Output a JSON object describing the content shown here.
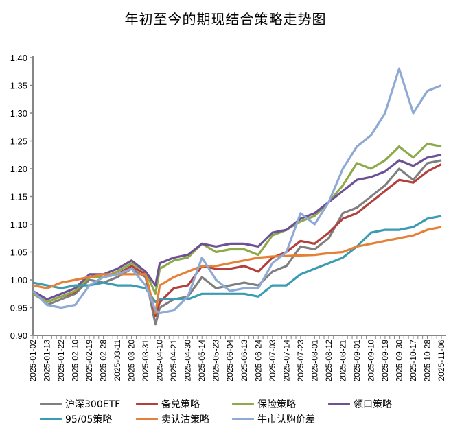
{
  "chart_data": {
    "type": "line",
    "title": "年初至今的期现结合策略走势图",
    "xlabel": "",
    "ylabel": "",
    "ylim": [
      0.9,
      1.4
    ],
    "yticks": [
      "0.90",
      "0.95",
      "1.00",
      "1.05",
      "1.10",
      "1.15",
      "1.20",
      "1.25",
      "1.30",
      "1.35",
      "1.40"
    ],
    "xtick_labels": [
      "2025-01-02",
      "2025-01-13",
      "2025-01-22",
      "2025-02-10",
      "2025-02-19",
      "2025-02-28",
      "2025-03-11",
      "2025-03-20",
      "2025-03-31",
      "2025-04-10",
      "2025-04-21",
      "2025-04-30",
      "2025-05-14",
      "2025-05-23",
      "2025-06-04",
      "2025-06-13",
      "2025-06-24",
      "2025-07-03",
      "2025-07-14",
      "2025-07-23",
      "2025-08-01",
      "2025-08-12",
      "2025-08-21",
      "2025-09-01",
      "2025-09-10",
      "2025-09-19",
      "2025-09-30",
      "2025-10-17",
      "2025-10-28",
      "2025-11-06"
    ],
    "x": [
      "2025-01-02",
      "2025-01-13",
      "2025-01-22",
      "2025-02-10",
      "2025-02-19",
      "2025-02-28",
      "2025-03-11",
      "2025-03-20",
      "2025-03-31",
      "2025-04-07",
      "2025-04-10",
      "2025-04-21",
      "2025-04-30",
      "2025-05-14",
      "2025-05-23",
      "2025-06-04",
      "2025-06-13",
      "2025-06-24",
      "2025-07-03",
      "2025-07-14",
      "2025-07-23",
      "2025-08-01",
      "2025-08-12",
      "2025-08-21",
      "2025-09-01",
      "2025-09-10",
      "2025-09-19",
      "2025-09-30",
      "2025-10-17",
      "2025-10-28",
      "2025-11-06"
    ],
    "grid": false,
    "legend_position": "bottom",
    "series": [
      {
        "name": "沪深300ETF",
        "color": "#7f7f7f",
        "values": [
          0.98,
          0.955,
          0.965,
          0.975,
          1.0,
          0.995,
          1.005,
          1.02,
          1.005,
          0.92,
          0.95,
          0.965,
          0.97,
          1.005,
          0.985,
          0.99,
          0.995,
          0.99,
          1.015,
          1.025,
          1.06,
          1.055,
          1.075,
          1.12,
          1.13,
          1.15,
          1.17,
          1.2,
          1.18,
          1.21,
          1.215
        ]
      },
      {
        "name": "备兑策略",
        "color": "#b2403f",
        "values": [
          0.975,
          0.96,
          0.97,
          0.978,
          1.005,
          1.005,
          1.01,
          1.025,
          1.01,
          0.935,
          0.96,
          0.985,
          0.99,
          1.025,
          1.02,
          1.02,
          1.025,
          1.015,
          1.04,
          1.05,
          1.07,
          1.065,
          1.085,
          1.11,
          1.12,
          1.14,
          1.16,
          1.18,
          1.175,
          1.195,
          1.208
        ]
      },
      {
        "name": "保险策略",
        "color": "#8caa48",
        "values": [
          0.975,
          0.96,
          0.97,
          0.98,
          1.005,
          1.005,
          1.015,
          1.03,
          1.015,
          0.975,
          1.02,
          1.035,
          1.04,
          1.065,
          1.05,
          1.055,
          1.055,
          1.045,
          1.08,
          1.09,
          1.105,
          1.115,
          1.14,
          1.17,
          1.21,
          1.2,
          1.215,
          1.24,
          1.22,
          1.245,
          1.24
        ]
      },
      {
        "name": "领口策略",
        "color": "#6e5094",
        "values": [
          0.98,
          0.965,
          0.975,
          0.985,
          1.01,
          1.01,
          1.02,
          1.035,
          1.015,
          0.99,
          1.03,
          1.04,
          1.045,
          1.065,
          1.06,
          1.065,
          1.065,
          1.06,
          1.085,
          1.09,
          1.11,
          1.12,
          1.14,
          1.16,
          1.18,
          1.185,
          1.195,
          1.215,
          1.205,
          1.22,
          1.225
        ]
      },
      {
        "name": "95/05策略",
        "color": "#3a9bb2",
        "values": [
          0.995,
          0.99,
          0.985,
          0.99,
          0.99,
          0.995,
          0.99,
          0.99,
          0.985,
          0.96,
          0.965,
          0.965,
          0.965,
          0.975,
          0.975,
          0.975,
          0.975,
          0.97,
          0.99,
          0.99,
          1.01,
          1.02,
          1.03,
          1.04,
          1.06,
          1.085,
          1.09,
          1.09,
          1.095,
          1.11,
          1.115
        ]
      },
      {
        "name": "卖认沽策略",
        "color": "#e58137",
        "values": [
          0.99,
          0.985,
          0.995,
          1.0,
          1.005,
          1.01,
          1.01,
          1.01,
          1.01,
          0.94,
          0.99,
          1.005,
          1.015,
          1.025,
          1.025,
          1.03,
          1.035,
          1.04,
          1.042,
          1.043,
          1.044,
          1.045,
          1.048,
          1.05,
          1.06,
          1.065,
          1.07,
          1.075,
          1.08,
          1.09,
          1.095
        ]
      },
      {
        "name": "牛市认购价差",
        "color": "#8eaad4",
        "values": [
          0.98,
          0.955,
          0.95,
          0.955,
          0.99,
          1.005,
          1.01,
          1.02,
          0.99,
          0.945,
          0.94,
          0.945,
          0.97,
          1.04,
          1.0,
          0.98,
          0.985,
          0.985,
          1.03,
          1.05,
          1.12,
          1.1,
          1.14,
          1.2,
          1.24,
          1.26,
          1.3,
          1.38,
          1.3,
          1.34,
          1.35
        ]
      }
    ]
  }
}
